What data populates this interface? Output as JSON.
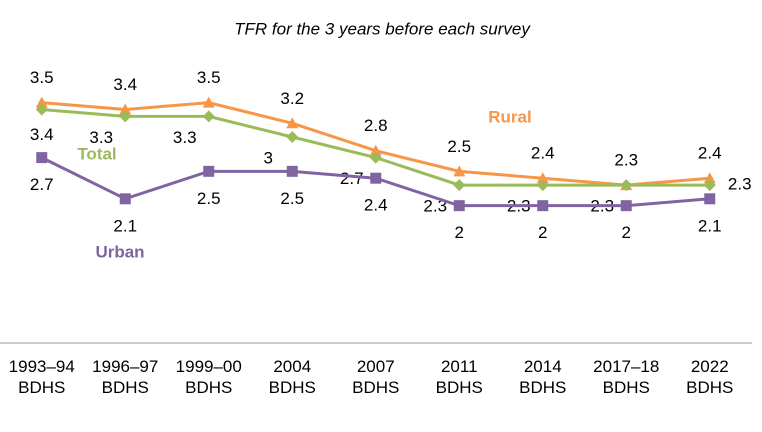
{
  "chart_data": {
    "type": "line",
    "title": "TFR for the 3 years before each survey",
    "categories": [
      "1993–94 BDHS",
      "1996–97 BDHS",
      "1999–00 BDHS",
      "2004 BDHS",
      "2007 BDHS",
      "2011 BDHS",
      "2014 BDHS",
      "2017–18 BDHS",
      "2022 BDHS"
    ],
    "ylim": [
      0,
      4.5
    ],
    "series": [
      {
        "name": "Rural",
        "color": "#f79646",
        "marker": "triangle",
        "values": [
          3.5,
          3.4,
          3.5,
          3.2,
          2.8,
          2.5,
          2.4,
          2.3,
          2.4
        ]
      },
      {
        "name": "Total",
        "color": "#9bbb59",
        "marker": "diamond",
        "values": [
          3.4,
          3.3,
          3.3,
          3.0,
          2.7,
          2.3,
          2.3,
          2.3,
          2.3
        ]
      },
      {
        "name": "Urban",
        "color": "#8064a2",
        "marker": "square",
        "values": [
          2.7,
          2.1,
          2.5,
          2.5,
          2.4,
          2.0,
          2.0,
          2.0,
          2.1
        ]
      }
    ]
  }
}
